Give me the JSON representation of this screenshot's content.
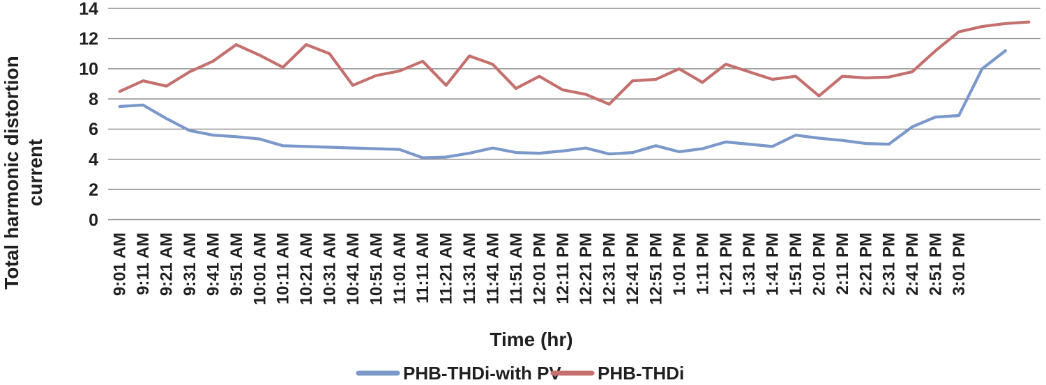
{
  "chart_data": {
    "type": "line",
    "title": "",
    "xlabel": "Time (hr)",
    "ylabel": "Total harmonic distortion current",
    "ylabel_lines": [
      "Total harmonic distortion",
      "current"
    ],
    "ylim": [
      0,
      14
    ],
    "yticks": [
      0,
      2,
      4,
      6,
      8,
      10,
      12,
      14
    ],
    "grid": "horizontal gridlines on",
    "legend_position": "bottom-center",
    "categories": [
      "9:01 AM",
      "9:11 AM",
      "9:21 AM",
      "9:31 AM",
      "9:41 AM",
      "9:51 AM",
      "10:01 AM",
      "10:11 AM",
      "10:21 AM",
      "10:31 AM",
      "10:41 AM",
      "10:51 AM",
      "11:01 AM",
      "11:11 AM",
      "11:21 AM",
      "11:31 AM",
      "11:41 AM",
      "11:51 AM",
      "12:01 PM",
      "12:11 PM",
      "12:21 PM",
      "12:31 PM",
      "12:41 PM",
      "12:51 PM",
      "1:01 PM",
      "1:11 PM",
      "1:21 PM",
      "1:31 PM",
      "1:41 PM",
      "1:51 PM",
      "2:01 PM",
      "2:11 PM",
      "2:21 PM",
      "2:31 PM",
      "2:41 PM",
      "2:51 PM",
      "3:01 PM",
      "",
      "",
      ""
    ],
    "series": [
      {
        "name": "PHB-THDi-with PV",
        "color": "#7B98CA",
        "values": [
          7.5,
          7.6,
          6.7,
          5.9,
          5.6,
          5.5,
          5.35,
          4.9,
          4.85,
          4.8,
          4.75,
          4.7,
          4.65,
          4.1,
          4.15,
          4.4,
          4.75,
          4.45,
          4.4,
          4.55,
          4.75,
          4.35,
          4.45,
          4.9,
          4.5,
          4.7,
          5.15,
          5.0,
          4.85,
          5.6,
          5.4,
          5.25,
          5.05,
          5.0,
          6.15,
          6.8,
          6.9,
          10.0,
          11.2,
          null
        ]
      },
      {
        "name": "PHB-THDi",
        "color": "#C4706E",
        "values": [
          8.5,
          9.2,
          8.85,
          9.8,
          10.5,
          11.6,
          10.9,
          10.1,
          11.6,
          11.0,
          8.9,
          9.55,
          9.85,
          10.5,
          8.9,
          10.85,
          10.3,
          8.7,
          9.5,
          8.6,
          8.3,
          7.65,
          9.2,
          9.3,
          10.0,
          9.1,
          10.3,
          9.8,
          9.3,
          9.5,
          8.2,
          9.5,
          9.4,
          9.45,
          9.8,
          11.2,
          12.45,
          12.8,
          13.0,
          13.1
        ]
      }
    ]
  },
  "colors": {
    "background": "#FFFFFF",
    "gridline": "#898989",
    "text": "#1F1F1F",
    "series_blue": "#7B98CA",
    "series_red": "#C4706E"
  }
}
